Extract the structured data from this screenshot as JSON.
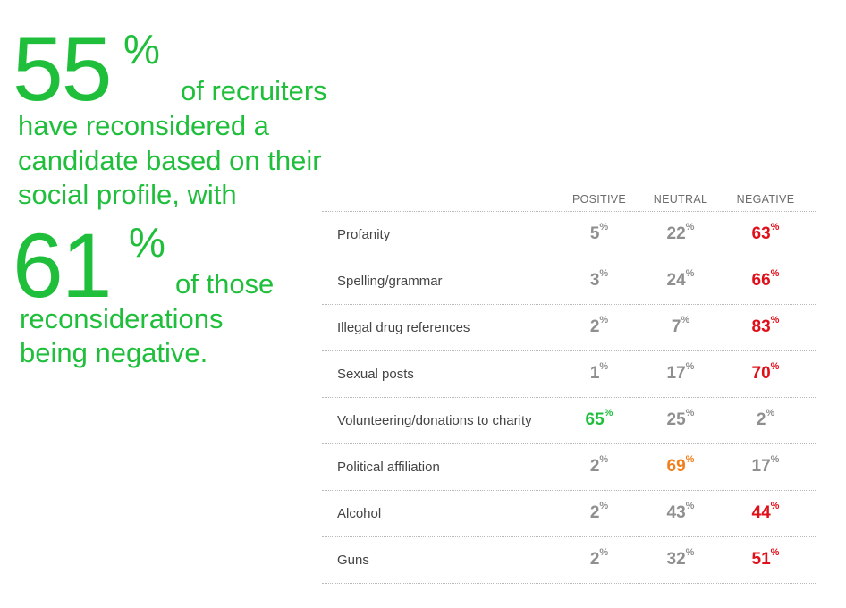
{
  "stat1": {
    "number": "55",
    "pct": "%",
    "lines": [
      "of recruiters",
      "have reconsidered a",
      "candidate based on their",
      "social profile, with"
    ]
  },
  "stat2": {
    "number": "61",
    "pct": "%",
    "lines": [
      "of those",
      "reconsiderations",
      "being negative."
    ]
  },
  "colors": {
    "green": "#1fbf3c",
    "red": "#e0101a",
    "orange": "#f07f1c",
    "gray": "#8f8f8f"
  },
  "chart_data": {
    "type": "table",
    "columns": [
      "POSITIVE",
      "NEUTRAL",
      "NEGATIVE"
    ],
    "unit": "%",
    "rows": [
      {
        "label": "Profanity",
        "values": [
          5,
          22,
          63
        ],
        "highlight": 2,
        "color": "red"
      },
      {
        "label": "Spelling/grammar",
        "values": [
          3,
          24,
          66
        ],
        "highlight": 2,
        "color": "red"
      },
      {
        "label": "Illegal drug references",
        "values": [
          2,
          7,
          83
        ],
        "highlight": 2,
        "color": "red"
      },
      {
        "label": "Sexual posts",
        "values": [
          1,
          17,
          70
        ],
        "highlight": 2,
        "color": "red"
      },
      {
        "label": "Volunteering/donations to charity",
        "values": [
          65,
          25,
          2
        ],
        "highlight": 0,
        "color": "green"
      },
      {
        "label": "Political affiliation",
        "values": [
          2,
          69,
          17
        ],
        "highlight": 1,
        "color": "orange"
      },
      {
        "label": "Alcohol",
        "values": [
          2,
          43,
          44
        ],
        "highlight": 2,
        "color": "red"
      },
      {
        "label": "Guns",
        "values": [
          2,
          32,
          51
        ],
        "highlight": 2,
        "color": "red"
      }
    ]
  }
}
